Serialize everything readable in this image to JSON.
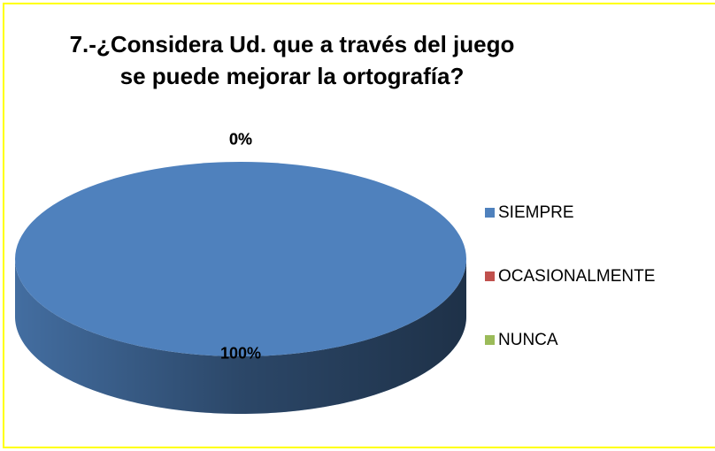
{
  "chart_data": {
    "type": "pie",
    "title": [
      "7.-¿Considera Ud. que a través del juego",
      "se puede mejorar la ortografía?"
    ],
    "categories": [
      "SIEMPRE",
      "OCASIONALMENTE",
      "NUNCA"
    ],
    "values": [
      100,
      0,
      0
    ],
    "value_labels": [
      "100%",
      "0%",
      "0%"
    ],
    "colors": [
      "#4f81bd",
      "#c0504d",
      "#9bbb59"
    ],
    "legend": "right"
  }
}
